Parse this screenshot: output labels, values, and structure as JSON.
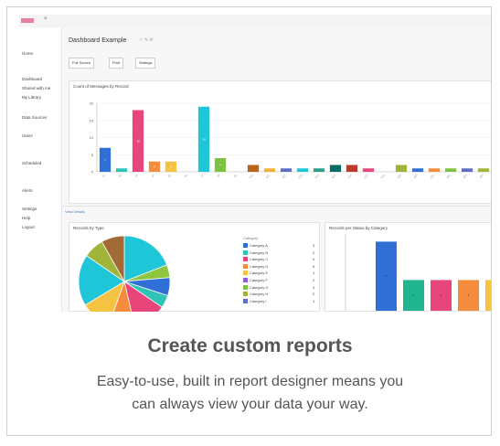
{
  "sidebar": {
    "items": [
      "Home",
      "",
      "Dashboard",
      "Shared with me",
      "My Library",
      "Data Sources",
      "Users",
      "Scheduled",
      "Alerts",
      "Settings",
      "Help",
      "Logout"
    ]
  },
  "dashboard": {
    "title": "Dashboard Example",
    "title_icons": "☆ ✎ ⟳",
    "buttons": [
      "Full Screen",
      "Print",
      "Settings"
    ],
    "link": "View Details"
  },
  "bar_panel_title": "Count of Messages by Record",
  "pie_panel_title": "Records by Type",
  "bottom_panel_title": "Records per Status by Category",
  "legend": {
    "title": "Category",
    "items": [
      {
        "label": "Category A",
        "value": "3",
        "color": "#2f6fd6"
      },
      {
        "label": "Category B",
        "value": "2",
        "color": "#2ec4b6"
      },
      {
        "label": "Category C",
        "value": "4",
        "color": "#e8457a"
      },
      {
        "label": "Category D",
        "value": "5",
        "color": "#f58b3c"
      },
      {
        "label": "Category E",
        "value": "1",
        "color": "#f5c242"
      },
      {
        "label": "Category F",
        "value": "2",
        "color": "#8e5cd6"
      },
      {
        "label": "Category G",
        "value": "3",
        "color": "#7cc142"
      },
      {
        "label": "Category H",
        "value": "2",
        "color": "#a0b43a"
      },
      {
        "label": "Category I",
        "value": "1",
        "color": "#5d6ec7"
      }
    ]
  },
  "caption": {
    "title": "Create custom reports",
    "line1": "Easy-to-use, built in report designer means you",
    "line2": "can always view your data your way."
  },
  "chart_data": [
    {
      "type": "bar",
      "title": "Count of Messages by Record",
      "ylim": [
        0,
        20
      ],
      "yticks": [
        0,
        5,
        10,
        15,
        20
      ],
      "categories": [
        "c1",
        "c2",
        "c3",
        "c4",
        "c5",
        "c6",
        "c7",
        "c8",
        "c9",
        "c10",
        "c11",
        "c12",
        "c13",
        "c14",
        "c15",
        "c16",
        "c17",
        "c18",
        "c19",
        "c20",
        "c21",
        "c22",
        "c23",
        "c24"
      ],
      "values": [
        7,
        1,
        18,
        3,
        3,
        0,
        19,
        4,
        0,
        2,
        1,
        1,
        1,
        1,
        2,
        2,
        1,
        0,
        2,
        1,
        1,
        1,
        1,
        1
      ],
      "colors": [
        "#2f6fd6",
        "#2ec4b6",
        "#e8457a",
        "#f58b3c",
        "#f5c242",
        "#8e5cd6",
        "#1ec6d8",
        "#7cc142",
        "#a0b43a",
        "#b5651d",
        "#f2b03a",
        "#5d6ec7",
        "#1ec6d8",
        "#2f9e8a",
        "#0b6b66",
        "#c0392b",
        "#e8457a",
        "#999999",
        "#a0b43a",
        "#2f6fd6",
        "#f58b3c",
        "#7cc142",
        "#5d6ec7",
        "#a0b43a"
      ]
    },
    {
      "type": "pie",
      "title": "Records by Type",
      "values": [
        21,
        5,
        7,
        5,
        13,
        10,
        12,
        20,
        8,
        9
      ],
      "colors": [
        "#1ec6d8",
        "#8ec63f",
        "#2f6fd6",
        "#2ec4b6",
        "#e8457a",
        "#f58b3c",
        "#f5c242",
        "#1ec6d8",
        "#a0b43a",
        "#a26a35"
      ]
    },
    {
      "type": "bar",
      "title": "Records per Status by Category",
      "ylim": [
        0,
        10
      ],
      "values": [
        9,
        4,
        4,
        4,
        4
      ],
      "colors": [
        "#2f6fd6",
        "#1fb58f",
        "#e8457a",
        "#f58b3c",
        "#f5c242"
      ]
    }
  ]
}
